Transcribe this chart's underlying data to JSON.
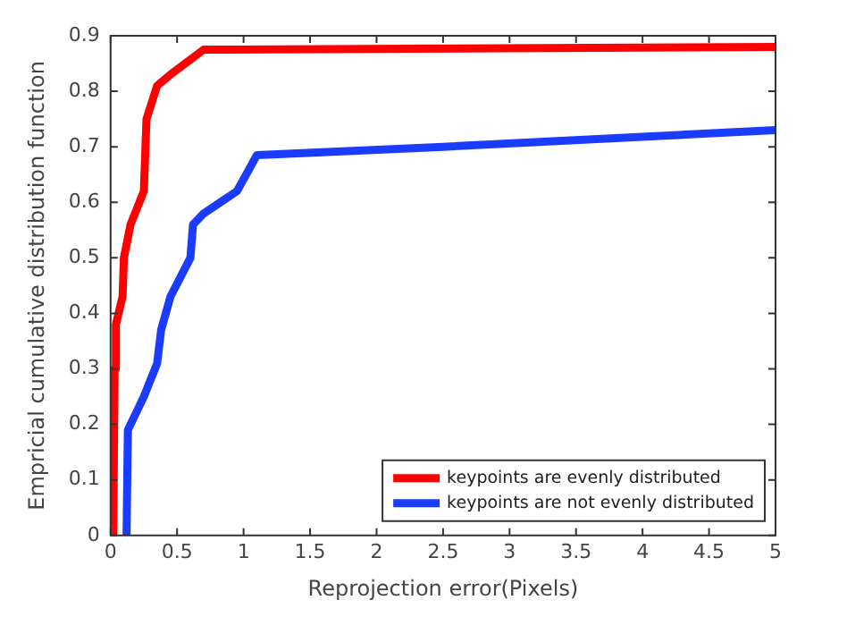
{
  "chart_data": {
    "type": "line",
    "xlabel": "Reprojection error(Pixels)",
    "ylabel": "Empricial cumulative distribution function",
    "xlim": [
      0,
      5
    ],
    "xticks": [
      0,
      0.5,
      1,
      1.5,
      2,
      2.5,
      3,
      3.5,
      4,
      4.5,
      5
    ],
    "ylim": [
      0,
      0.9
    ],
    "yticks": [
      0,
      0.1,
      0.2,
      0.3,
      0.4,
      0.5,
      0.6,
      0.7,
      0.8,
      0.9
    ],
    "grid": false,
    "legend": "bottom right",
    "marker": "none",
    "line_style": "solid",
    "series": [
      {
        "name": "keypoints are evenly distributed",
        "color": "#ff0000",
        "x": [
          0.02,
          0.03,
          0.04,
          0.09,
          0.1,
          0.15,
          0.25,
          0.27,
          0.35,
          0.45,
          0.7,
          5
        ],
        "values": [
          0,
          0.3,
          0.38,
          0.43,
          0.5,
          0.56,
          0.62,
          0.75,
          0.81,
          0.83,
          0.875,
          0.88
        ]
      },
      {
        "name": "keypoints are not evenly distributed",
        "color": "#1a3cff",
        "x": [
          0.12,
          0.13,
          0.25,
          0.35,
          0.38,
          0.45,
          0.6,
          0.62,
          0.7,
          0.95,
          1.1,
          2.5,
          5
        ],
        "values": [
          0,
          0.19,
          0.25,
          0.31,
          0.37,
          0.43,
          0.5,
          0.56,
          0.58,
          0.62,
          0.685,
          0.7,
          0.73
        ]
      }
    ]
  }
}
